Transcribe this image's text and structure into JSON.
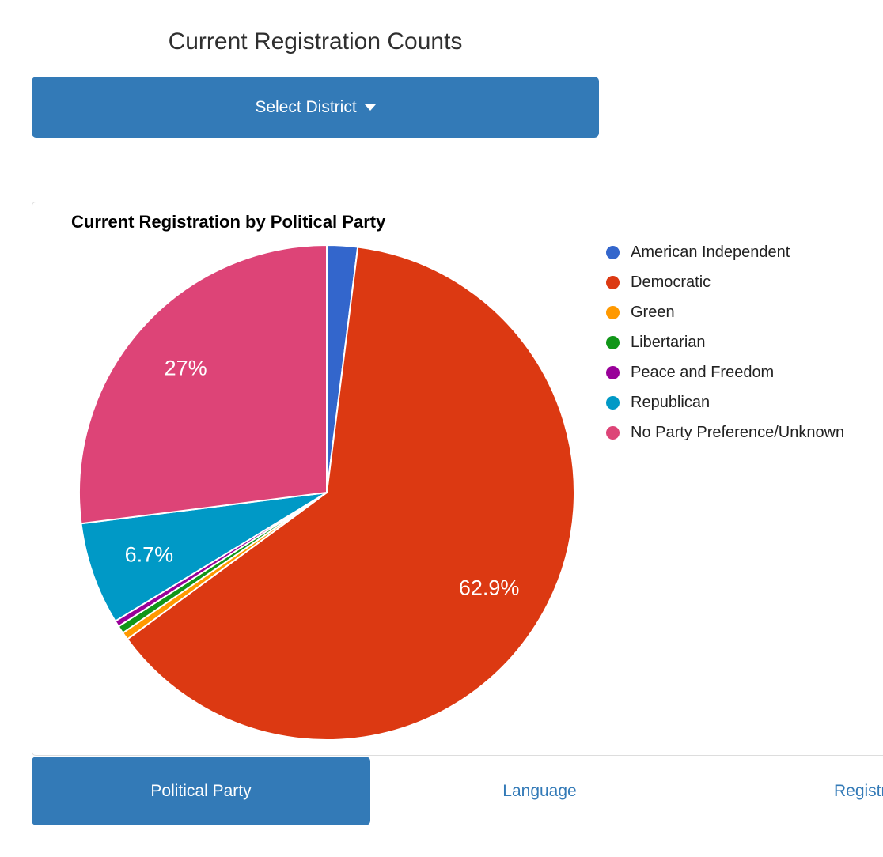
{
  "page": {
    "title": "Current Registration Counts"
  },
  "district_button": {
    "label": "Select District",
    "background_color": "#337ab7"
  },
  "card": {
    "chart_title": "Current Registration by Political Party"
  },
  "chart_data": {
    "type": "pie",
    "title": "Current Registration by Political Party",
    "legend_position": "right",
    "start_angle_deg": 0,
    "label_threshold_pct": 5,
    "visible_slice_labels": [
      "62.9%",
      "6.7%",
      "27%"
    ],
    "slices": [
      {
        "label": "American Independent",
        "value": 2.0,
        "color": "#3366CC",
        "display_label": ""
      },
      {
        "label": "Democratic",
        "value": 62.9,
        "color": "#DC3912",
        "display_label": "62.9%"
      },
      {
        "label": "Green",
        "value": 0.5,
        "color": "#FF9900",
        "display_label": ""
      },
      {
        "label": "Libertarian",
        "value": 0.5,
        "color": "#109618",
        "display_label": ""
      },
      {
        "label": "Peace and Freedom",
        "value": 0.4,
        "color": "#990099",
        "display_label": ""
      },
      {
        "label": "Republican",
        "value": 6.7,
        "color": "#0099C6",
        "display_label": "6.7%"
      },
      {
        "label": "No Party Preference/Unknown",
        "value": 27.0,
        "color": "#DD4477",
        "display_label": "27%"
      }
    ]
  },
  "tabs": [
    {
      "label": "Political Party",
      "active": true
    },
    {
      "label": "Language",
      "active": false
    },
    {
      "label": "Registration",
      "active": false
    }
  ]
}
